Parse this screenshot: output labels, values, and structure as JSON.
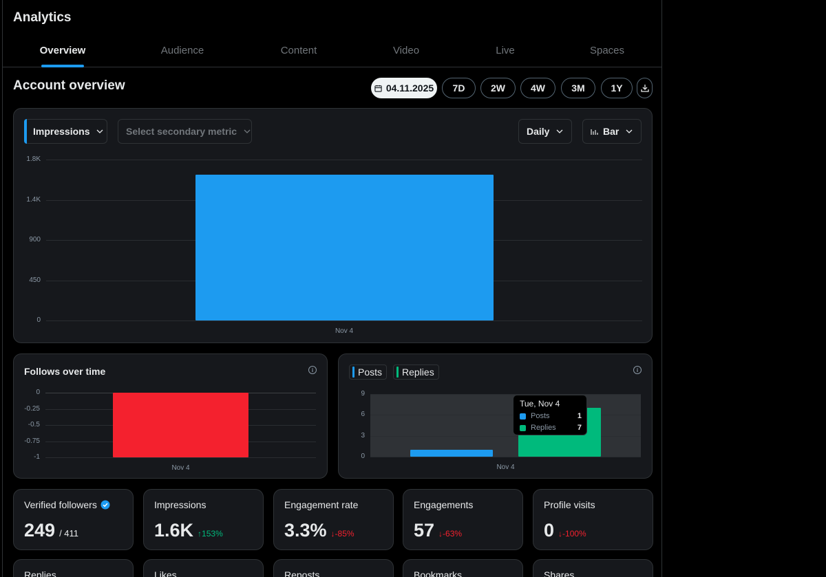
{
  "header": {
    "title": "Analytics"
  },
  "tabs": [
    {
      "label": "Overview",
      "active": true
    },
    {
      "label": "Audience"
    },
    {
      "label": "Content"
    },
    {
      "label": "Video"
    },
    {
      "label": "Live"
    },
    {
      "label": "Spaces"
    }
  ],
  "overview": {
    "title": "Account overview",
    "date": "04.11.2025",
    "ranges": [
      "7D",
      "2W",
      "4W",
      "3M",
      "1Y"
    ]
  },
  "main_chart": {
    "primary_metric": "Impressions",
    "secondary_placeholder": "Select secondary metric",
    "interval": "Daily",
    "chart_type_label": "Bar"
  },
  "follows_card": {
    "title": "Follows over time"
  },
  "posts_card": {
    "legend": [
      "Posts",
      "Replies"
    ],
    "tooltip": {
      "title": "Tue, Nov 4",
      "rows": [
        {
          "label": "Posts",
          "value": "1"
        },
        {
          "label": "Replies",
          "value": "7"
        }
      ]
    }
  },
  "stats": [
    {
      "label": "Verified followers",
      "value": "249",
      "sub": "/ 411",
      "verified": true
    },
    {
      "label": "Impressions",
      "value": "1.6K",
      "change": "↑153%",
      "dir": "up"
    },
    {
      "label": "Engagement rate",
      "value": "3.3%",
      "change": "↓-85%",
      "dir": "down"
    },
    {
      "label": "Engagements",
      "value": "57",
      "change": "↓-63%",
      "dir": "down"
    },
    {
      "label": "Profile visits",
      "value": "0",
      "change": "↓-100%",
      "dir": "down"
    }
  ],
  "stats_row2": [
    "Replies",
    "Likes",
    "Reposts",
    "Bookmarks",
    "Shares"
  ],
  "colors": {
    "accent": "#1d9bf0",
    "posts": "#1d9bf0",
    "replies": "#00ba7c",
    "follows": "#f4212e"
  },
  "chart_data": [
    {
      "type": "bar",
      "categories": [
        "Nov 4"
      ],
      "series": [
        {
          "name": "Impressions",
          "values": [
            1630
          ]
        }
      ],
      "yticks": [
        "0",
        "450",
        "900",
        "1.4K",
        "1.8K"
      ],
      "ytick_values": [
        0,
        450,
        900,
        1350,
        1800
      ],
      "ylim": [
        0,
        1800
      ],
      "grid": true
    },
    {
      "type": "bar",
      "title": "Follows over time",
      "categories": [
        "Nov 4"
      ],
      "series": [
        {
          "values": [
            -1
          ]
        }
      ],
      "yticks": [
        "0",
        "-0.25",
        "-0.5",
        "-0.75",
        "-1"
      ],
      "ytick_values": [
        0,
        -0.25,
        -0.5,
        -0.75,
        -1
      ],
      "ylim": [
        -1,
        0
      ],
      "grid": true
    },
    {
      "type": "bar",
      "categories": [
        "Nov 4"
      ],
      "series": [
        {
          "name": "Posts",
          "values": [
            1
          ]
        },
        {
          "name": "Replies",
          "values": [
            7
          ]
        }
      ],
      "yticks": [
        "0",
        "3",
        "6",
        "9"
      ],
      "ytick_values": [
        0,
        3,
        6,
        9
      ],
      "ylim": [
        0,
        9
      ],
      "grid": true
    }
  ]
}
